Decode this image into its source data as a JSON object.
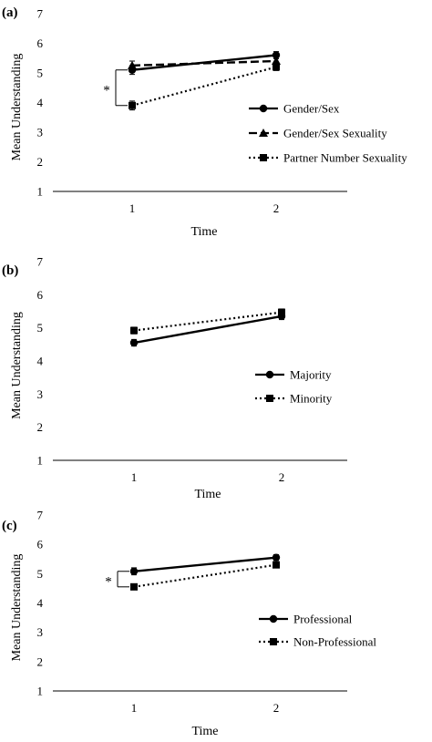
{
  "chart_data": [
    {
      "type": "line",
      "panel_label": "(a)",
      "xlabel": "Time",
      "ylabel": "Mean Understanding",
      "categories": [
        "1",
        "2"
      ],
      "ylim": [
        1,
        7
      ],
      "yticks": [
        "1",
        "2",
        "3",
        "4",
        "5",
        "6",
        "7"
      ],
      "grid": false,
      "legend_position": "right",
      "significance": {
        "label": "*",
        "time": "1",
        "between": [
          "Gender/Sex",
          "Partner Number Sexuality"
        ]
      },
      "series": [
        {
          "name": "Gender/Sex",
          "values": [
            5.1,
            5.6
          ],
          "errors": [
            0.15,
            0.12
          ],
          "marker": "circle",
          "dash": "solid"
        },
        {
          "name": "Gender/Sex Sexuality",
          "values": [
            5.25,
            5.4
          ],
          "errors": [
            0.15,
            0.12
          ],
          "marker": "triangle",
          "dash": "dashed"
        },
        {
          "name": "Partner Number Sexuality",
          "values": [
            3.9,
            5.2
          ],
          "errors": [
            0.15,
            0.12
          ],
          "marker": "square",
          "dash": "dotted"
        }
      ]
    },
    {
      "type": "line",
      "panel_label": "(b)",
      "xlabel": "Time",
      "ylabel": "Mean Understanding",
      "categories": [
        "1",
        "2"
      ],
      "ylim": [
        1,
        7
      ],
      "yticks": [
        "1",
        "2",
        "3",
        "4",
        "5",
        "6",
        "7"
      ],
      "grid": false,
      "legend_position": "right",
      "series": [
        {
          "name": "Majority",
          "values": [
            4.55,
            5.35
          ],
          "errors": [
            0.1,
            0.1
          ],
          "marker": "circle",
          "dash": "solid"
        },
        {
          "name": "Minority",
          "values": [
            4.92,
            5.47
          ],
          "errors": [
            0.1,
            0.1
          ],
          "marker": "square",
          "dash": "dotted"
        }
      ]
    },
    {
      "type": "line",
      "panel_label": "(c)",
      "xlabel": "Time",
      "ylabel": "Mean Understanding",
      "categories": [
        "1",
        "2"
      ],
      "ylim": [
        1,
        7
      ],
      "yticks": [
        "1",
        "2",
        "3",
        "4",
        "5",
        "6",
        "7"
      ],
      "grid": false,
      "legend_position": "right",
      "significance": {
        "label": "*",
        "time": "1",
        "between": [
          "Professional",
          "Non-Professional"
        ]
      },
      "series": [
        {
          "name": "Professional",
          "values": [
            5.08,
            5.55
          ],
          "errors": [
            0.12,
            0.1
          ],
          "marker": "circle",
          "dash": "solid"
        },
        {
          "name": "Non-Professional",
          "values": [
            4.55,
            5.3
          ],
          "errors": [
            0.1,
            0.08
          ],
          "marker": "square",
          "dash": "dotted"
        }
      ]
    }
  ]
}
